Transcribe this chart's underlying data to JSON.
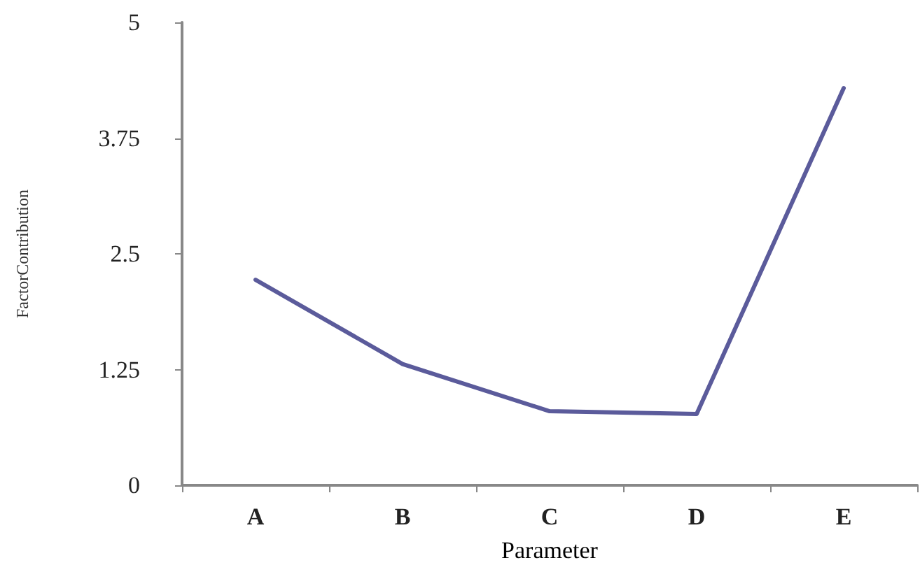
{
  "chart_data": {
    "type": "line",
    "xlabel": "Parameter",
    "ylabel": "FactorContribution",
    "categories": [
      "A",
      "B",
      "C",
      "D",
      "E"
    ],
    "series": [
      {
        "color": "#5b5b9b",
        "values": [
          2.22,
          1.31,
          0.8,
          0.77,
          4.29
        ]
      }
    ],
    "ylim": [
      0,
      5
    ],
    "yticks": [
      0,
      1.25,
      2.5,
      3.75,
      5
    ],
    "marker": "none",
    "line_style": "solid"
  }
}
